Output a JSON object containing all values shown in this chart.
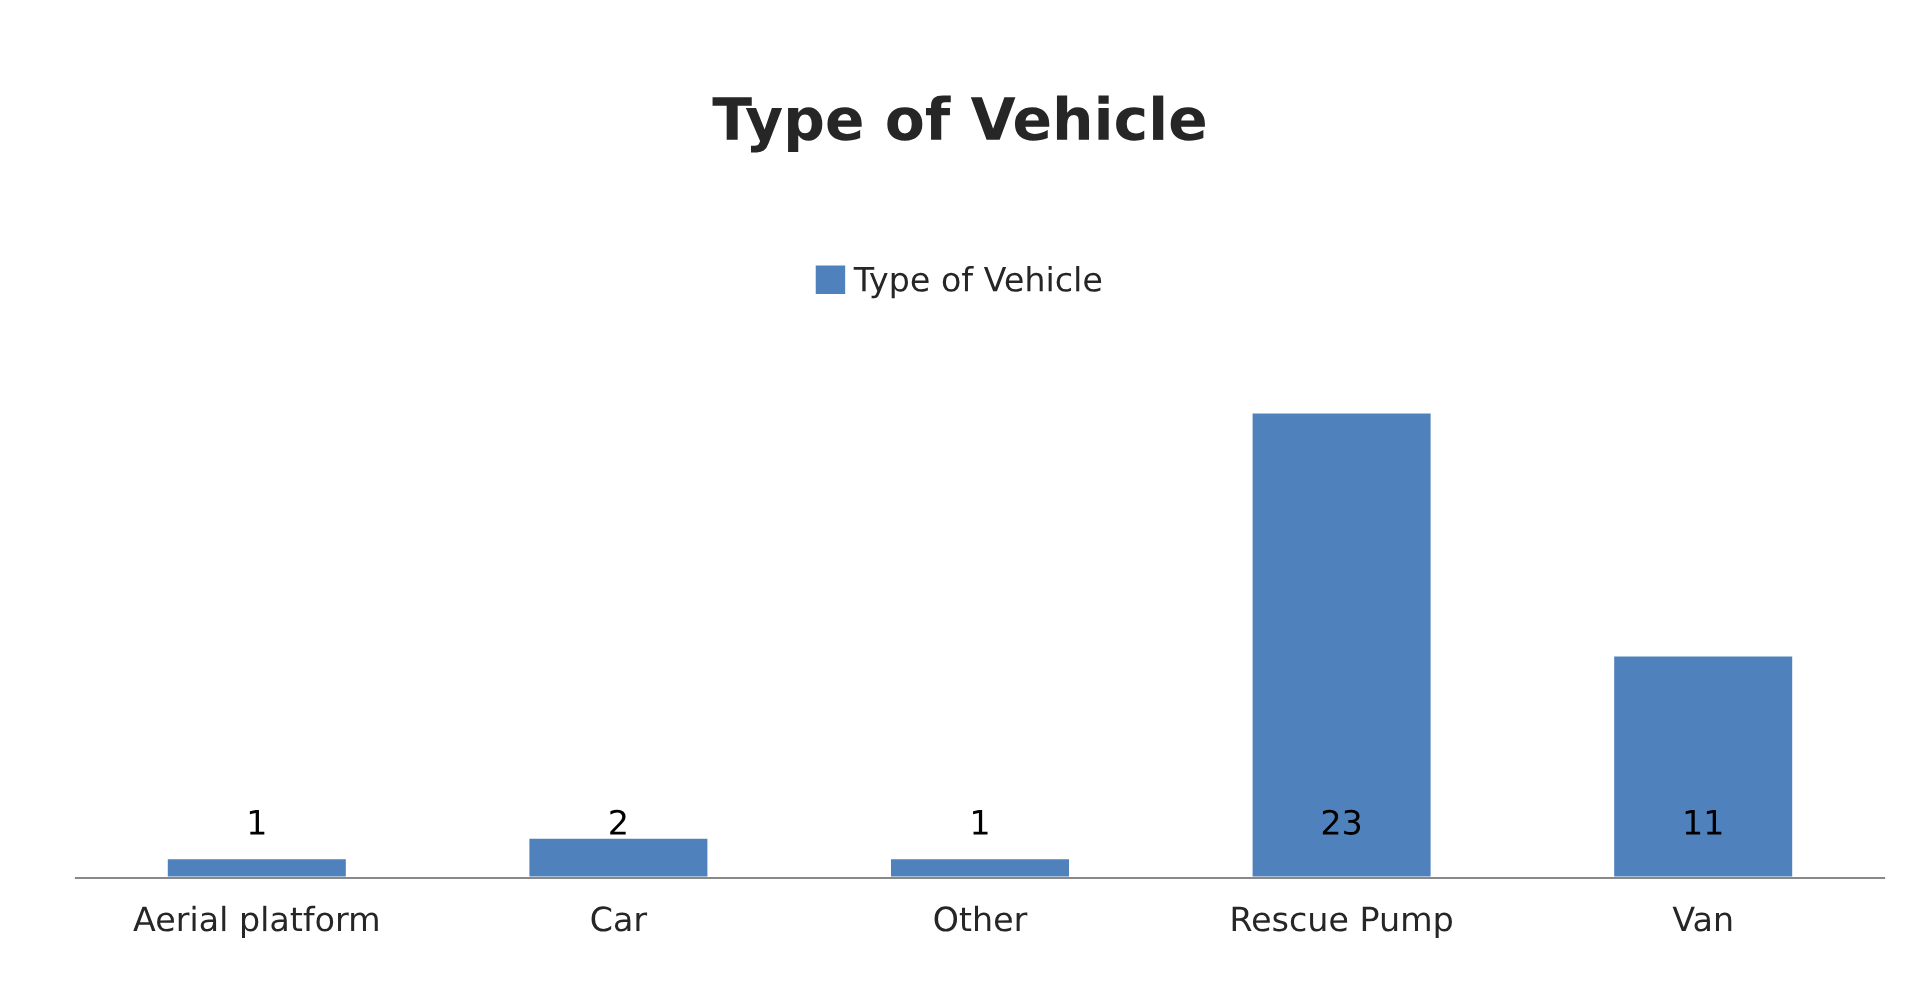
{
  "chart_data": {
    "type": "bar",
    "title": "Type of Vehicle",
    "categories": [
      "Aerial platform",
      "Car",
      "Other",
      "Rescue Pump",
      "Van"
    ],
    "series": [
      {
        "name": "Type of Vehicle",
        "color": "#4f81bd",
        "values": [
          1,
          2,
          1,
          23,
          11
        ]
      }
    ],
    "data_labels": true,
    "legend": "top",
    "grid": false
  }
}
